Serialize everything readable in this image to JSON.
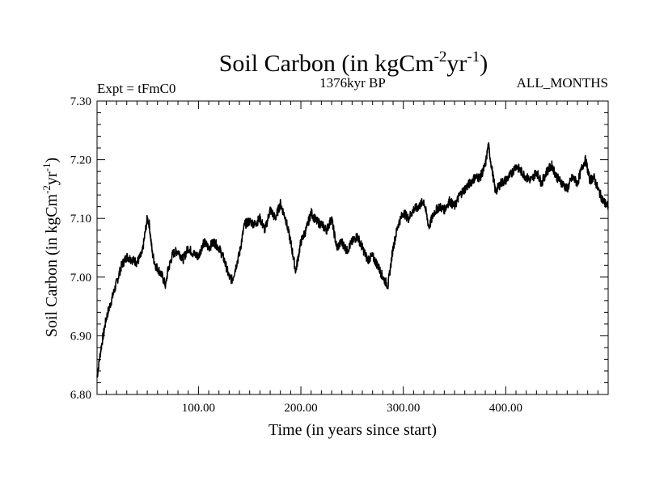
{
  "chart_data": {
    "type": "line",
    "title": {
      "main": "Soil Carbon (in kgCm",
      "sup1": "-2",
      "mid": "yr",
      "sup2": "-1",
      "end": ")"
    },
    "subtitle_left": "Expt = tFmC0",
    "subtitle_center": "1376kyr BP",
    "subtitle_right": "ALL_MONTHS",
    "xlabel": "Time (in years since start)",
    "ylabel": {
      "main": "Soil Carbon (in kgCm",
      "sup1": "-2",
      "mid": "yr",
      "sup2": "-1",
      "end": ")"
    },
    "xlim": [
      1,
      500
    ],
    "ylim": [
      6.8,
      7.3
    ],
    "xticks": [
      100,
      200,
      300,
      400
    ],
    "xtick_labels": [
      "100.00",
      "200.00",
      "300.00",
      "400.00"
    ],
    "yticks": [
      6.8,
      6.9,
      7.0,
      7.1,
      7.2,
      7.3
    ],
    "ytick_labels": [
      "6.80",
      "6.90",
      "7.00",
      "7.10",
      "7.20",
      "7.30"
    ],
    "series": [
      {
        "name": "Soil Carbon",
        "color": "#000000",
        "x": [
          1,
          5,
          10,
          15,
          20,
          25,
          30,
          35,
          40,
          45,
          50,
          52,
          55,
          58,
          62,
          65,
          68,
          70,
          75,
          80,
          85,
          90,
          95,
          100,
          105,
          110,
          115,
          120,
          125,
          130,
          133,
          140,
          145,
          150,
          155,
          160,
          165,
          170,
          175,
          180,
          185,
          190,
          195,
          200,
          205,
          210,
          215,
          220,
          225,
          230,
          235,
          240,
          245,
          250,
          255,
          260,
          265,
          270,
          275,
          280,
          285,
          290,
          295,
          300,
          305,
          310,
          315,
          320,
          325,
          330,
          335,
          340,
          345,
          350,
          355,
          360,
          365,
          370,
          375,
          380,
          383,
          386,
          390,
          395,
          400,
          405,
          410,
          415,
          420,
          425,
          430,
          435,
          440,
          445,
          450,
          455,
          460,
          465,
          470,
          475,
          478,
          482,
          486,
          490,
          495,
          500
        ],
        "y": [
          6.83,
          6.88,
          6.93,
          6.96,
          6.99,
          7.02,
          7.035,
          7.03,
          7.025,
          7.04,
          7.1,
          7.09,
          7.04,
          7.02,
          7.01,
          7.0,
          6.985,
          7.01,
          7.04,
          7.045,
          7.03,
          7.05,
          7.04,
          7.035,
          7.06,
          7.05,
          7.06,
          7.05,
          7.03,
          7.0,
          6.995,
          7.04,
          7.09,
          7.095,
          7.09,
          7.1,
          7.08,
          7.115,
          7.1,
          7.125,
          7.1,
          7.06,
          7.01,
          7.06,
          7.08,
          7.11,
          7.095,
          7.09,
          7.08,
          7.1,
          7.05,
          7.06,
          7.045,
          7.06,
          7.07,
          7.05,
          7.03,
          7.035,
          7.02,
          7.0,
          6.985,
          7.05,
          7.09,
          7.11,
          7.1,
          7.115,
          7.12,
          7.13,
          7.085,
          7.11,
          7.12,
          7.115,
          7.13,
          7.12,
          7.14,
          7.15,
          7.16,
          7.17,
          7.17,
          7.19,
          7.225,
          7.19,
          7.145,
          7.16,
          7.165,
          7.175,
          7.19,
          7.18,
          7.17,
          7.165,
          7.18,
          7.16,
          7.18,
          7.19,
          7.17,
          7.16,
          7.15,
          7.17,
          7.16,
          7.19,
          7.2,
          7.165,
          7.17,
          7.15,
          7.13,
          7.12
        ]
      }
    ]
  }
}
